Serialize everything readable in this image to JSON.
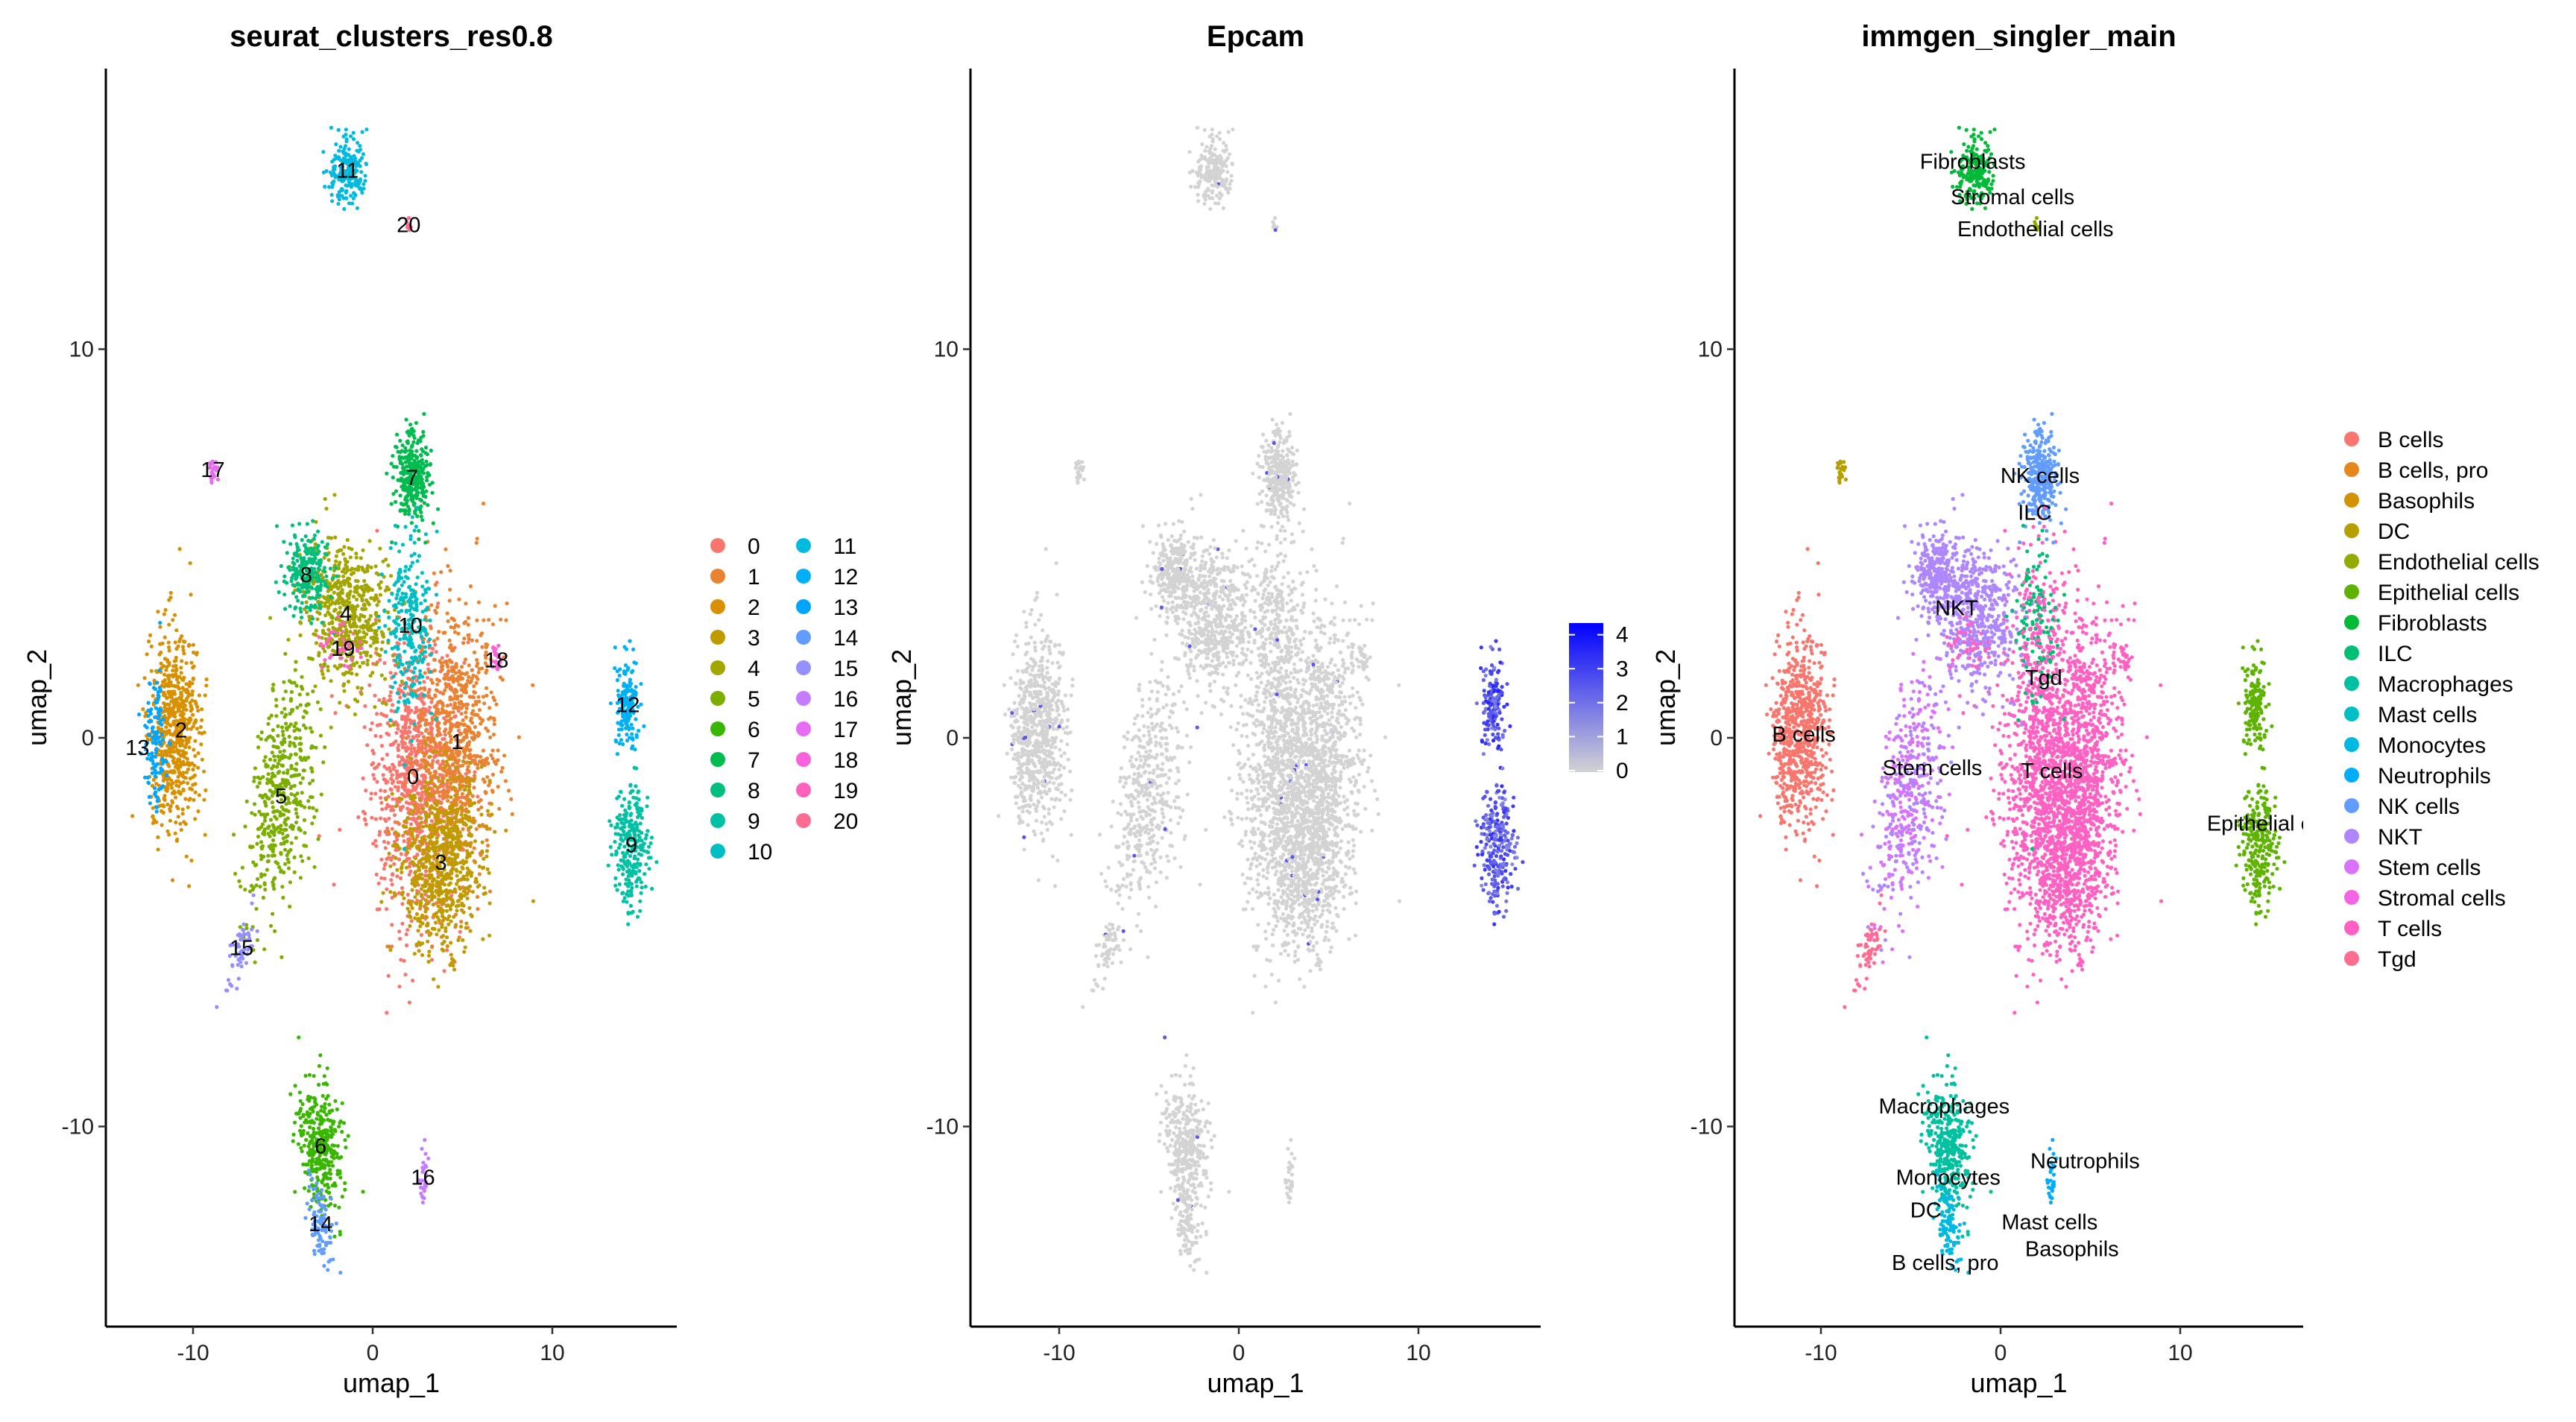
{
  "chart_data": [
    {
      "type": "scatter",
      "title": "seurat_clusters_res0.8",
      "xlabel": "umap_1",
      "ylabel": "umap_2",
      "xlim": [
        -14.85,
        16.9
      ],
      "ylim": [
        -15.15,
        17.2
      ],
      "xticks": [
        "-10",
        "0",
        "10"
      ],
      "yticks": [
        "-10",
        "0",
        "10"
      ],
      "grid": false,
      "legend": "right",
      "clusters": [
        {
          "name": "0",
          "color": "#F8766D",
          "center": [
            2.25,
            -1.0
          ],
          "spread": [
            1.3,
            1.8
          ]
        },
        {
          "name": "1",
          "color": "#EA8331",
          "center": [
            4.7,
            -0.1
          ],
          "spread": [
            1.1,
            1.8
          ]
        },
        {
          "name": "2",
          "color": "#D89000",
          "center": [
            -11.0,
            0.2
          ],
          "spread": [
            0.7,
            1.3
          ]
        },
        {
          "name": "3",
          "color": "#C09B00",
          "center": [
            3.8,
            -3.2
          ],
          "spread": [
            1.2,
            1.1
          ]
        },
        {
          "name": "4",
          "color": "#A3A500",
          "center": [
            -1.5,
            3.2
          ],
          "spread": [
            1.2,
            0.9
          ]
        },
        {
          "name": "5",
          "color": "#7CAE00",
          "center": [
            -5.1,
            -1.5
          ],
          "spread": [
            0.8,
            1.6
          ]
        },
        {
          "name": "6",
          "color": "#39B600",
          "center": [
            -2.9,
            -10.5
          ],
          "spread": [
            0.6,
            0.8
          ]
        },
        {
          "name": "7",
          "color": "#00BB4E",
          "center": [
            2.2,
            6.7
          ],
          "spread": [
            0.5,
            0.6
          ]
        },
        {
          "name": "8",
          "color": "#00BF7D",
          "center": [
            -3.7,
            4.2
          ],
          "spread": [
            0.6,
            0.5
          ]
        },
        {
          "name": "9",
          "color": "#00C1A3",
          "center": [
            14.4,
            -2.75
          ],
          "spread": [
            0.5,
            0.8
          ]
        },
        {
          "name": "10",
          "color": "#00BFC4",
          "center": [
            2.1,
            2.9
          ],
          "spread": [
            0.6,
            1.2
          ]
        },
        {
          "name": "11",
          "color": "#00BAE0",
          "center": [
            -1.4,
            14.6
          ],
          "spread": [
            0.5,
            0.4
          ]
        },
        {
          "name": "12",
          "color": "#00B0F6",
          "center": [
            14.2,
            0.85
          ],
          "spread": [
            0.35,
            0.6
          ]
        },
        {
          "name": "13",
          "color": "#00A5FF",
          "center": [
            -12.1,
            -0.1
          ],
          "spread": [
            0.3,
            0.8
          ]
        },
        {
          "name": "14",
          "color": "#619CFF",
          "center": [
            -2.9,
            -12.5
          ],
          "spread": [
            0.3,
            0.6
          ]
        },
        {
          "name": "15",
          "color": "#9590FF",
          "center": [
            -7.3,
            -5.4
          ],
          "spread": [
            0.25,
            0.6
          ]
        },
        {
          "name": "16",
          "color": "#C77CFF",
          "center": [
            2.8,
            -11.3
          ],
          "spread": [
            0.15,
            0.4
          ]
        },
        {
          "name": "17",
          "color": "#E76BF3",
          "center": [
            -8.9,
            6.9
          ],
          "spread": [
            0.12,
            0.15
          ]
        },
        {
          "name": "18",
          "color": "#FA62DB",
          "center": [
            6.9,
            2.0
          ],
          "spread": [
            0.15,
            0.2
          ]
        },
        {
          "name": "19",
          "color": "#FF62BC",
          "center": [
            -1.65,
            2.3
          ],
          "spread": [
            0.6,
            0.4
          ]
        },
        {
          "name": "20",
          "color": "#FF6C91",
          "center": [
            2.0,
            13.2
          ],
          "spread": [
            0.1,
            0.1
          ]
        }
      ]
    },
    {
      "type": "scatter",
      "title": "Epcam",
      "xlabel": "umap_1",
      "ylabel": "umap_2",
      "xlim": [
        -14.85,
        16.9
      ],
      "ylim": [
        -15.15,
        17.2
      ],
      "xticks": [
        "-10",
        "0",
        "10"
      ],
      "yticks": [
        "-10",
        "0",
        "10"
      ],
      "grid": false,
      "legend": "right",
      "colorbar": {
        "low_color": "#D3D3D3",
        "high_color": "#0000FF",
        "ticks": [
          "0",
          "1",
          "2",
          "3",
          "4"
        ],
        "range": [
          0,
          4.3
        ]
      },
      "expression_by_cluster": {
        "9": 2.4,
        "12": 2.6
      }
    },
    {
      "type": "scatter",
      "title": "immgen_singler_main",
      "xlabel": "umap_1",
      "ylabel": "umap_2",
      "xlim": [
        -14.85,
        16.9
      ],
      "ylim": [
        -15.15,
        17.2
      ],
      "xticks": [
        "-10",
        "0",
        "10"
      ],
      "yticks": [
        "-10",
        "0",
        "10"
      ],
      "grid": false,
      "legend": "right",
      "celltypes": [
        {
          "name": "B cells",
          "color": "#F8766D",
          "label_at": [
            -10.95,
            0.1
          ]
        },
        {
          "name": "B cells, pro",
          "color": "#E7861B",
          "label_at": [
            -3.08,
            -13.5
          ]
        },
        {
          "name": "Basophils",
          "color": "#D39200",
          "label_at": [
            2.73,
            -12.8
          ]
        },
        {
          "name": "DC",
          "color": "#B79F00",
          "label_at": [
            -3.33,
            -11.46
          ]
        },
        {
          "name": "Endothelial cells",
          "color": "#93AA00",
          "label_at": [
            1.94,
            13.1
          ]
        },
        {
          "name": "Epithelial cells",
          "color": "#5EB300",
          "label_at": [
            15.3,
            -2.2
          ]
        },
        {
          "name": "Fibroblasts",
          "color": "#00BA38",
          "label_at": [
            -1.55,
            14.6
          ]
        },
        {
          "name": "ILC",
          "color": "#00BF74",
          "label_at": [
            1.9,
            5.8
          ]
        },
        {
          "name": "Macrophages",
          "color": "#00C19F",
          "label_at": [
            -3.14,
            -9.47
          ]
        },
        {
          "name": "Mast cells",
          "color": "#00BFC4",
          "label_at": [
            2.73,
            -12.8
          ]
        },
        {
          "name": "Monocytes",
          "color": "#00B9E3",
          "label_at": [
            -2.5,
            -11.3
          ]
        },
        {
          "name": "Neutrophils",
          "color": "#00ADFA",
          "label_at": [
            2.63,
            -11.15
          ]
        },
        {
          "name": "NK cells",
          "color": "#619CFF",
          "label_at": [
            2.2,
            6.75
          ]
        },
        {
          "name": "NKT",
          "color": "#AE87FF",
          "label_at": [
            -2.45,
            3.35
          ]
        },
        {
          "name": "Stem cells",
          "color": "#DB72FB",
          "label_at": [
            -3.8,
            -0.77
          ]
        },
        {
          "name": "Stromal cells",
          "color": "#F564E3",
          "label_at": [
            0.67,
            14.0
          ]
        },
        {
          "name": "T cells",
          "color": "#FF61C3",
          "label_at": [
            2.86,
            -0.84
          ]
        },
        {
          "name": "Tgd",
          "color": "#FF6C91",
          "label_at": [
            2.4,
            1.55
          ]
        }
      ],
      "cluster_to_celltype": {
        "0": "T cells",
        "1": "T cells",
        "2": "B cells",
        "3": "T cells",
        "4": "NKT",
        "5": "Stem cells",
        "6": "Macrophages",
        "7": "NK cells",
        "8": "NKT",
        "9": "Epithelial cells",
        "10": "ILC",
        "11": "Fibroblasts",
        "12": "Epithelial cells",
        "13": "B cells",
        "14": "Monocytes",
        "15": "Tgd",
        "16": "Neutrophils",
        "17": "DC",
        "18": "T cells",
        "19": "T cells",
        "20": "Endothelial cells"
      }
    }
  ]
}
